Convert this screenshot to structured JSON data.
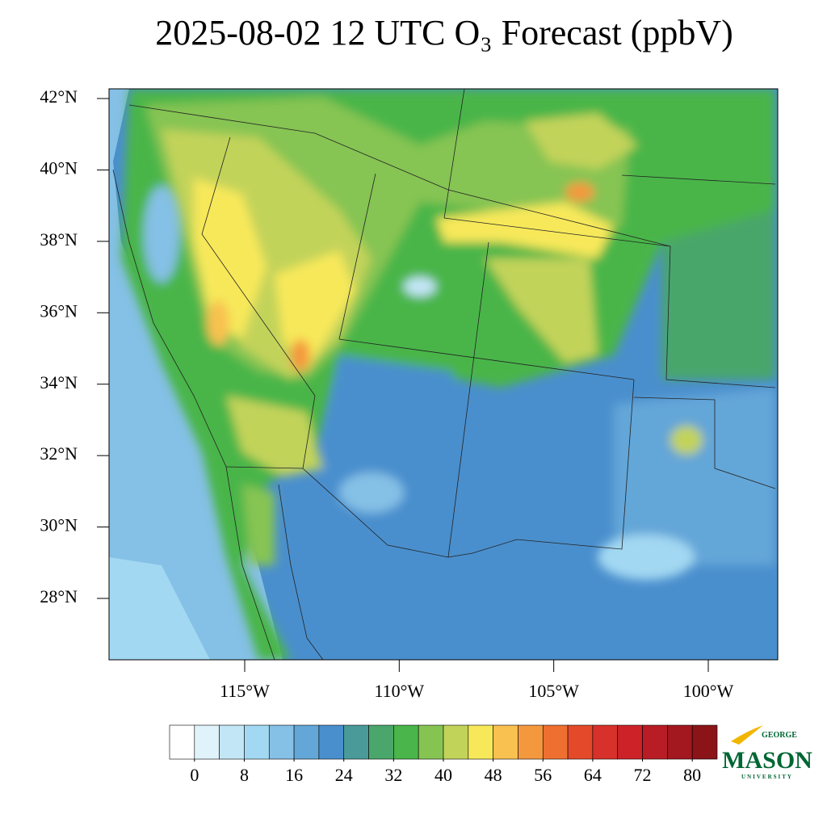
{
  "header": {
    "title": "2025-08-02 12 UTC O₃ Forecast (ppbV)"
  },
  "map": {
    "lat_ticks": [
      {
        "value": 42,
        "label": "42°N"
      },
      {
        "value": 40,
        "label": "40°N"
      },
      {
        "value": 38,
        "label": "38°N"
      },
      {
        "value": 36,
        "label": "36°N"
      },
      {
        "value": 34,
        "label": "34°N"
      },
      {
        "value": 32,
        "label": "32°N"
      },
      {
        "value": 30,
        "label": "30°N"
      },
      {
        "value": 28,
        "label": "28°N"
      }
    ],
    "lon_ticks": [
      {
        "value": -115,
        "label": "115°W"
      },
      {
        "value": -110,
        "label": "110°W"
      },
      {
        "value": -105,
        "label": "105°W"
      },
      {
        "value": -100,
        "label": "100°W"
      }
    ]
  },
  "colorbar": {
    "min": 0,
    "max": 80,
    "ticks": [
      0,
      8,
      16,
      24,
      32,
      40,
      48,
      56,
      64,
      72,
      80
    ],
    "colors": [
      "#ffffff",
      "#e0f3fb",
      "#c3e6f6",
      "#a3d8f2",
      "#85c0e6",
      "#63a6d8",
      "#4a8fcd",
      "#4a9a9a",
      "#4aa66a",
      "#4ab54a",
      "#86c452",
      "#c2d35a",
      "#f7e85a",
      "#f8c150",
      "#f4983e",
      "#ef6f30",
      "#e44a2a",
      "#d8302a",
      "#cc2228",
      "#b81c24",
      "#a3181f",
      "#8b1419"
    ]
  },
  "logo": {
    "top": "GEORGE",
    "main": "MASON",
    "bottom": "UNIVERSITY"
  }
}
